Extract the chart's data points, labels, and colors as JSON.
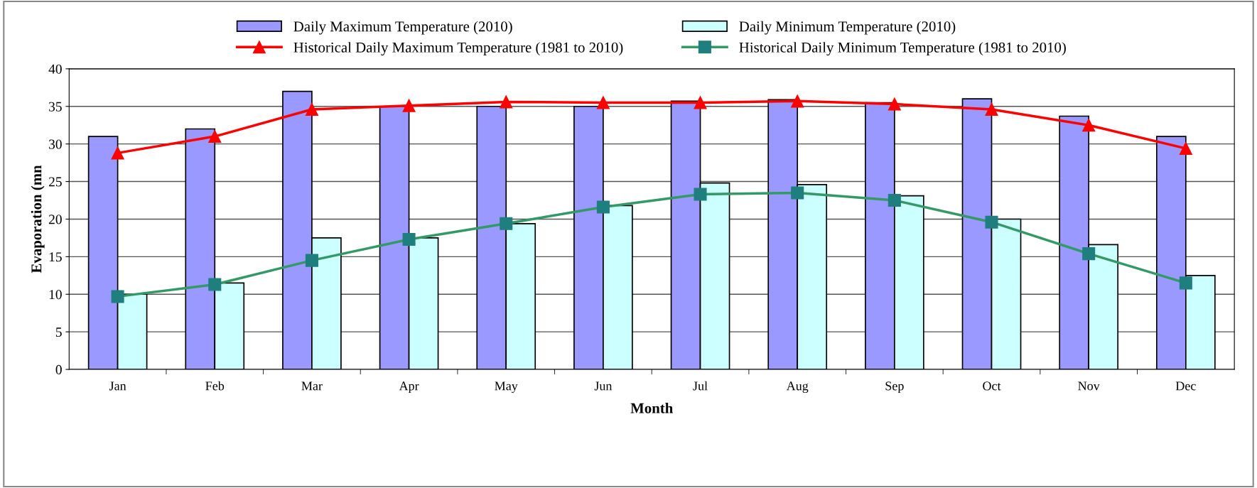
{
  "chart_data": {
    "type": "bar",
    "xlabel": "Month",
    "ylabel": "Evaporation (mn",
    "categories": [
      "Jan",
      "Feb",
      "Mar",
      "Apr",
      "May",
      "Jun",
      "Jul",
      "Aug",
      "Sep",
      "Oct",
      "Nov",
      "Dec"
    ],
    "series": [
      {
        "name": "Daily Maximum Temperature (2010)",
        "color": "#9999ff",
        "values": [
          31,
          32,
          37,
          35,
          35,
          35,
          35.7,
          35.9,
          35.5,
          36,
          33.7,
          31
        ]
      },
      {
        "name": "Daily Minimum Temperature (2010)",
        "color": "#ccffff",
        "values": [
          10,
          11.5,
          17.5,
          17.5,
          19.4,
          21.8,
          24.8,
          24.6,
          23.1,
          20,
          16.6,
          12.5
        ]
      },
      {
        "name": "Historical Daily Maximum Temperature (1981 to 2010)",
        "type": "line",
        "marker": "triangle",
        "color": "#ff0000",
        "values": [
          28.8,
          31,
          34.6,
          35.1,
          35.6,
          35.5,
          35.5,
          35.7,
          35.3,
          34.6,
          32.5,
          29.4
        ]
      },
      {
        "name": "Historical Daily Minimum Temperature (1981 to 2010)",
        "type": "line",
        "marker": "square",
        "color": "#339966",
        "values": [
          9.7,
          11.3,
          14.5,
          17.3,
          19.4,
          21.6,
          23.3,
          23.5,
          22.5,
          19.6,
          15.4,
          11.5
        ]
      }
    ],
    "ylim": [
      0,
      40
    ],
    "yticks": [
      0,
      5,
      10,
      15,
      20,
      25,
      30,
      35,
      40
    ],
    "grid": "y",
    "legend": "top"
  }
}
